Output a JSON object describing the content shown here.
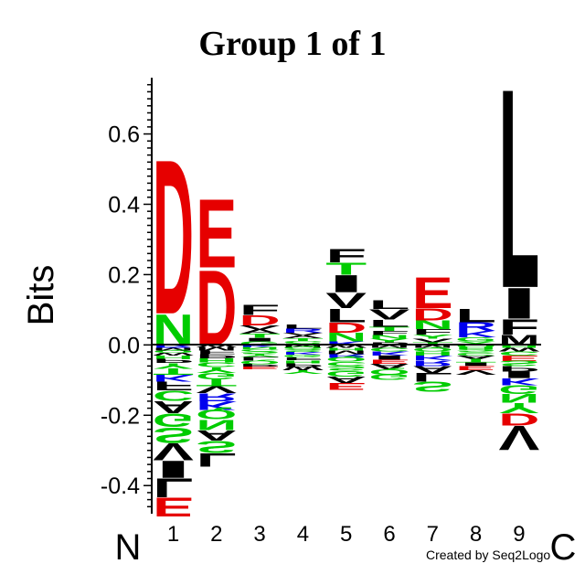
{
  "colors": {
    "acidic": "#e60000",
    "polar": "#00cc00",
    "basic": "#0000ee",
    "hydrophobic": "#000000"
  },
  "color_groups": {
    "acidic": "DE",
    "polar": "NQSGTCYH",
    "basic": "KR",
    "hydrophobic": "ALIVMFWP"
  },
  "terminal_labels": {
    "n": "N",
    "c": "C"
  },
  "footer": {
    "credit": "Created by Seq2Logo"
  },
  "chart_data": {
    "type": "sequence_logo",
    "title": "Group 1 of 1",
    "ylabel": "Bits",
    "xlabel": "",
    "ylim": [
      -0.48,
      0.76
    ],
    "yticks": [
      -0.4,
      -0.2,
      0.0,
      0.2,
      0.4,
      0.6
    ],
    "ytick_labels": [
      "-0.4",
      "-0.2",
      "0.0",
      "0.2",
      "0.4",
      "0.6"
    ],
    "positions": [
      "1",
      "2",
      "3",
      "4",
      "5",
      "6",
      "7",
      "8",
      "9"
    ],
    "stacks": [
      {
        "pos": "1",
        "positive": [
          [
            "N",
            0.09
          ],
          [
            "D",
            0.45
          ]
        ],
        "negative": [
          [
            "R",
            0.008
          ],
          [
            "M",
            0.008
          ],
          [
            "Q",
            0.006
          ],
          [
            "W",
            0.008
          ],
          [
            "H",
            0.01
          ],
          [
            "P",
            0.012
          ],
          [
            "Y",
            0.015
          ],
          [
            "T",
            0.018
          ],
          [
            "K",
            0.02
          ],
          [
            "F",
            0.025
          ],
          [
            "C",
            0.03
          ],
          [
            "A",
            0.035
          ],
          [
            "G",
            0.04
          ],
          [
            "S",
            0.045
          ],
          [
            "V",
            0.05
          ],
          [
            "I",
            0.05
          ],
          [
            "L",
            0.055
          ],
          [
            "E",
            0.055
          ]
        ]
      },
      {
        "pos": "2",
        "positive": [
          [
            "D",
            0.22
          ],
          [
            "E",
            0.2
          ]
        ],
        "negative": [
          [
            "W",
            0.006
          ],
          [
            "M",
            0.01
          ],
          [
            "F",
            0.01
          ],
          [
            "P",
            0.012
          ],
          [
            "H",
            0.012
          ],
          [
            "C",
            0.014
          ],
          [
            "Y",
            0.016
          ],
          [
            "G",
            0.018
          ],
          [
            "T",
            0.02
          ],
          [
            "V",
            0.02
          ],
          [
            "R",
            0.022
          ],
          [
            "K",
            0.025
          ],
          [
            "Q",
            0.028
          ],
          [
            "N",
            0.03
          ],
          [
            "A",
            0.03
          ],
          [
            "S",
            0.035
          ],
          [
            "L",
            0.04
          ]
        ]
      },
      {
        "pos": "3",
        "positive": [
          [
            "G",
            0.01
          ],
          [
            "I",
            0.01
          ],
          [
            "T",
            0.012
          ],
          [
            "A",
            0.012
          ],
          [
            "V",
            0.012
          ],
          [
            "D",
            0.03
          ],
          [
            "F",
            0.03
          ]
        ],
        "negative": [
          [
            "K",
            0.006
          ],
          [
            "N",
            0.006
          ],
          [
            "C",
            0.006
          ],
          [
            "S",
            0.008
          ],
          [
            "Y",
            0.008
          ],
          [
            "L",
            0.01
          ],
          [
            "Q",
            0.01
          ],
          [
            "P",
            0.008
          ],
          [
            "E",
            0.008
          ]
        ]
      },
      {
        "pos": "4",
        "positive": [
          [
            "N",
            0.005
          ],
          [
            "C",
            0.006
          ],
          [
            "T",
            0.008
          ],
          [
            "A",
            0.008
          ],
          [
            "V",
            0.008
          ],
          [
            "R",
            0.012
          ],
          [
            "L",
            0.012
          ]
        ],
        "negative": [
          [
            "M",
            0.006
          ],
          [
            "Q",
            0.006
          ],
          [
            "S",
            0.008
          ],
          [
            "K",
            0.008
          ],
          [
            "G",
            0.008
          ],
          [
            "F",
            0.008
          ],
          [
            "H",
            0.008
          ],
          [
            "P",
            0.01
          ],
          [
            "W",
            0.01
          ],
          [
            "Y",
            0.01
          ]
        ]
      },
      {
        "pos": "5",
        "positive": [
          [
            "K",
            0.01
          ],
          [
            "N",
            0.025
          ],
          [
            "D",
            0.03
          ],
          [
            "L",
            0.04
          ],
          [
            "V",
            0.045
          ],
          [
            "I",
            0.05
          ],
          [
            "T",
            0.035
          ],
          [
            "F",
            0.04
          ]
        ],
        "negative": [
          [
            "W",
            0.008
          ],
          [
            "H",
            0.008
          ],
          [
            "M",
            0.01
          ],
          [
            "R",
            0.01
          ],
          [
            "Q",
            0.012
          ],
          [
            "C",
            0.012
          ],
          [
            "S",
            0.014
          ],
          [
            "G",
            0.016
          ],
          [
            "A",
            0.018
          ],
          [
            "E",
            0.02
          ]
        ]
      },
      {
        "pos": "6",
        "positive": [
          [
            "P",
            0.008
          ],
          [
            "Y",
            0.01
          ],
          [
            "N",
            0.01
          ],
          [
            "F",
            0.012
          ],
          [
            "T",
            0.012
          ],
          [
            "L",
            0.02
          ],
          [
            "V",
            0.03
          ],
          [
            "L",
            0.025
          ]
        ],
        "negative": [
          [
            "M",
            0.008
          ],
          [
            "C",
            0.01
          ],
          [
            "K",
            0.012
          ],
          [
            "I",
            0.012
          ],
          [
            "E",
            0.012
          ],
          [
            "A",
            0.015
          ],
          [
            "Q",
            0.015
          ],
          [
            "G",
            0.016
          ]
        ]
      },
      {
        "pos": "7",
        "positive": [
          [
            "T",
            0.008
          ],
          [
            "V",
            0.01
          ],
          [
            "Y",
            0.012
          ],
          [
            "F",
            0.015
          ],
          [
            "N",
            0.025
          ],
          [
            "D",
            0.035
          ],
          [
            "E",
            0.09
          ]
        ],
        "negative": [
          [
            "M",
            0.008
          ],
          [
            "Q",
            0.01
          ],
          [
            "H",
            0.012
          ],
          [
            "K",
            0.014
          ],
          [
            "R",
            0.016
          ],
          [
            "A",
            0.02
          ],
          [
            "L",
            0.025
          ],
          [
            "S",
            0.03
          ]
        ]
      },
      {
        "pos": "8",
        "positive": [
          [
            "Y",
            0.01
          ],
          [
            "G",
            0.012
          ],
          [
            "K",
            0.018
          ],
          [
            "R",
            0.025
          ],
          [
            "L",
            0.04
          ]
        ],
        "negative": [
          [
            "Q",
            0.006
          ],
          [
            "H",
            0.008
          ],
          [
            "S",
            0.008
          ],
          [
            "C",
            0.008
          ],
          [
            "A",
            0.01
          ],
          [
            "T",
            0.01
          ],
          [
            "I",
            0.01
          ],
          [
            "E",
            0.012
          ],
          [
            "V",
            0.014
          ]
        ]
      },
      {
        "pos": "9",
        "positive": [
          [
            "M",
            0.03
          ],
          [
            "F",
            0.045
          ],
          [
            "I",
            0.09
          ],
          [
            "L",
            0.58
          ]
        ],
        "negative": [
          [
            "H",
            0.008
          ],
          [
            "W",
            0.01
          ],
          [
            "C",
            0.012
          ],
          [
            "E",
            0.015
          ],
          [
            "S",
            0.015
          ],
          [
            "P",
            0.015
          ],
          [
            "I",
            0.02
          ],
          [
            "K",
            0.02
          ],
          [
            "G",
            0.025
          ],
          [
            "N",
            0.025
          ],
          [
            "Y",
            0.03
          ],
          [
            "D",
            0.035
          ],
          [
            "V",
            0.07
          ]
        ]
      }
    ]
  }
}
